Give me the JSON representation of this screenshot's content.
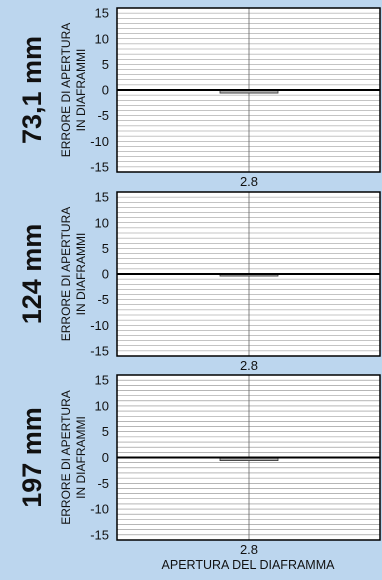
{
  "xlabel": "APERTURA DEL DIAFRAMMA",
  "ylabel_line1": "ERRORE DI APERTURA",
  "ylabel_line2": "IN DIAFRAMMI",
  "chart_data": [
    {
      "type": "bar",
      "title": "73,1 mm",
      "categories": [
        "2.8"
      ],
      "values": [
        -0.6
      ],
      "ylim": [
        -16,
        16
      ],
      "yticks": [
        15,
        10,
        5,
        0,
        -5,
        -10,
        -15
      ],
      "grid": true,
      "colors": {
        "bar": "#a9a9a9",
        "grid": "#8a8a8a",
        "background": "#ffffff"
      }
    },
    {
      "type": "bar",
      "title": "124 mm",
      "categories": [
        "2.8"
      ],
      "values": [
        -0.4
      ],
      "ylim": [
        -16,
        16
      ],
      "yticks": [
        15,
        10,
        5,
        0,
        -5,
        -10,
        -15
      ],
      "grid": true,
      "colors": {
        "bar": "#a9a9a9",
        "grid": "#8a8a8a",
        "background": "#ffffff"
      }
    },
    {
      "type": "bar",
      "title": "197 mm",
      "categories": [
        "2.8"
      ],
      "values": [
        -0.6
      ],
      "ylim": [
        -16,
        16
      ],
      "yticks": [
        15,
        10,
        5,
        0,
        -5,
        -10,
        -15
      ],
      "grid": true,
      "colors": {
        "bar": "#a9a9a9",
        "grid": "#8a8a8a",
        "background": "#ffffff"
      }
    }
  ]
}
